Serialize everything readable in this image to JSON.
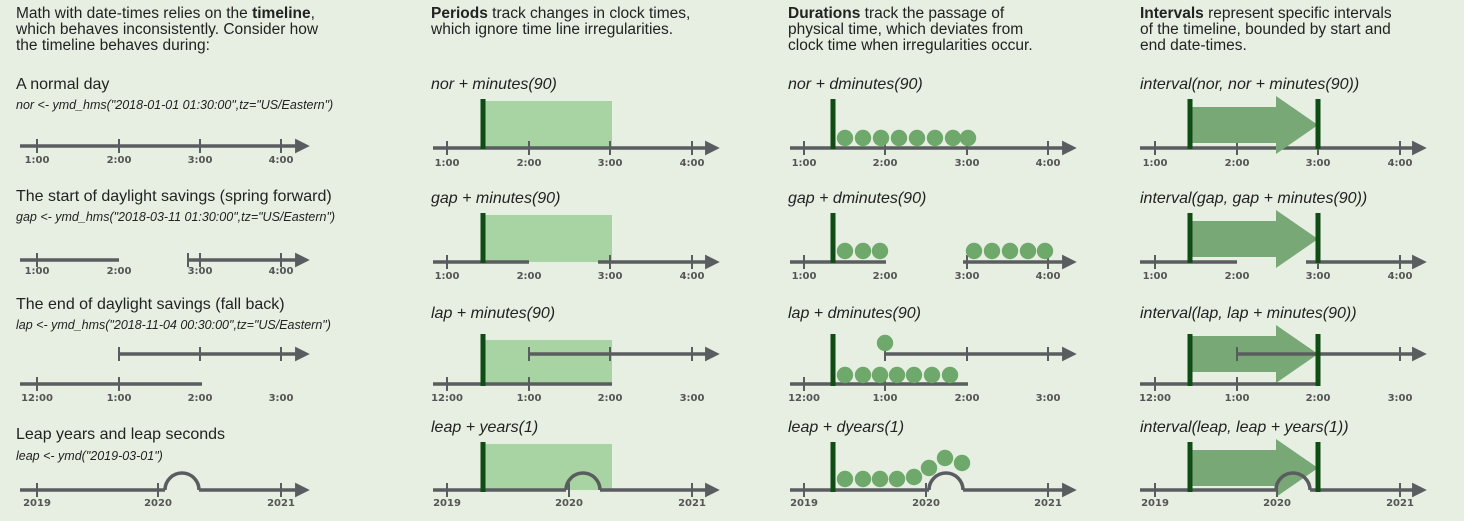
{
  "columns": [
    {
      "header_bold": "",
      "header_lines": [
        "Math with date-times relies on the ",
        "which behaves inconsistently.  Consider how",
        "the timeline behaves during:"
      ],
      "header_inline_bold": "timeline",
      "header_inline_suffix": ","
    },
    {
      "header_bold": "Periods",
      "header_lines": [
        " track changes in clock times,",
        "which ignore time line irregularities."
      ]
    },
    {
      "header_bold": "Durations",
      "header_lines": [
        " track the passage of",
        "physical time, which deviates from",
        "clock time when irregularities occur."
      ]
    },
    {
      "header_bold": "Intervals",
      "header_lines": [
        " represent specific intervals",
        "of the timeline, bounded by start and",
        "end date-times."
      ]
    }
  ],
  "rows": [
    {
      "title": "A normal day",
      "code": "nor <- ymd_hms(\"2018-01-01 01:30:00\",tz=\"US/Eastern\")",
      "period": "nor + minutes(90)",
      "duration": "nor + dminutes(90)",
      "interval": "interval(nor, nor + minutes(90))",
      "ticks": [
        "1:00",
        "2:00",
        "3:00",
        "4:00"
      ]
    },
    {
      "title": "The start of daylight savings (spring forward)",
      "code": "gap <- ymd_hms(\"2018-03-11 01:30:00\",tz=\"US/Eastern\")",
      "period": "gap + minutes(90)",
      "duration": "gap + dminutes(90)",
      "interval": "interval(gap, gap + minutes(90))",
      "ticks": [
        "1:00",
        "2:00",
        "3:00",
        "4:00"
      ]
    },
    {
      "title": "The end of daylight savings (fall back)",
      "code": "lap <- ymd_hms(\"2018-11-04 00:30:00\",tz=\"US/Eastern\")",
      "period": "lap + minutes(90)",
      "duration": "lap + dminutes(90)",
      "interval": "interval(lap, lap + minutes(90))",
      "ticks": [
        "12:00",
        "1:00",
        "2:00",
        "3:00"
      ]
    },
    {
      "title": "Leap years and leap seconds",
      "code": "leap <- ymd(\"2019-03-01\")",
      "period": "leap + years(1)",
      "duration": "leap + dyears(1)",
      "interval": "interval(leap, leap + years(1))",
      "ticks": [
        "2019",
        "2020",
        "2021"
      ]
    }
  ],
  "colors": {
    "background": "#e6efe2",
    "timeline": "#5a5d60",
    "period_fill": "#a8d3a2",
    "duration_dot": "#6ea86a",
    "interval_arrow": "#78a876",
    "marker": "#0f4d14"
  }
}
